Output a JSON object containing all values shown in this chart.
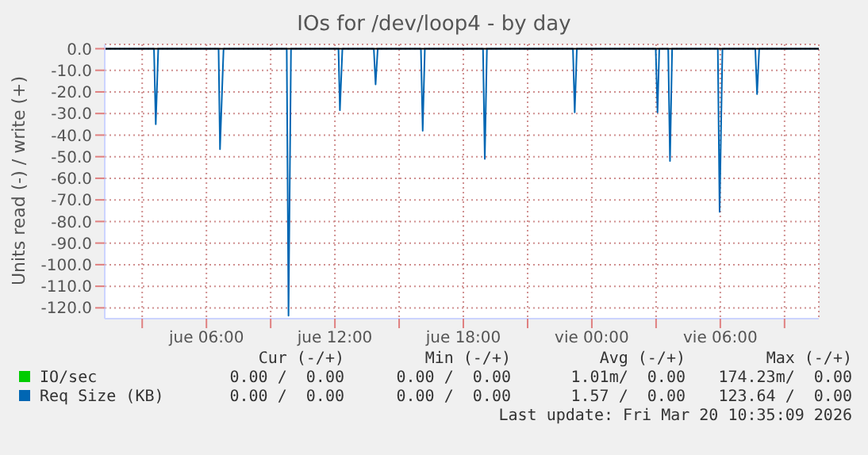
{
  "chart_data": {
    "type": "line",
    "title": "IOs for /dev/loop4 - by day",
    "ylabel": "Units read (-) / write (+)",
    "xlim": [
      "2026-03-19T01:15",
      "2026-03-20T10:36"
    ],
    "ylim": [
      -125,
      2
    ],
    "xticks": [
      {
        "value": "2026-03-19T03:00",
        "label": null
      },
      {
        "value": "2026-03-19T06:00",
        "label": "jue 06:00"
      },
      {
        "value": "2026-03-19T09:00",
        "label": null
      },
      {
        "value": "2026-03-19T12:00",
        "label": "jue 12:00"
      },
      {
        "value": "2026-03-19T15:00",
        "label": null
      },
      {
        "value": "2026-03-19T18:00",
        "label": "jue 18:00"
      },
      {
        "value": "2026-03-19T21:00",
        "label": null
      },
      {
        "value": "2026-03-20T00:00",
        "label": "vie 00:00"
      },
      {
        "value": "2026-03-20T03:00",
        "label": null
      },
      {
        "value": "2026-03-20T06:00",
        "label": "vie 06:00"
      },
      {
        "value": "2026-03-20T09:00",
        "label": null
      }
    ],
    "yticks": [
      {
        "value": 0,
        "label": "0.0"
      },
      {
        "value": -10,
        "label": "-10.0"
      },
      {
        "value": -20,
        "label": "-20.0"
      },
      {
        "value": -30,
        "label": "-30.0"
      },
      {
        "value": -40,
        "label": "-40.0"
      },
      {
        "value": -50,
        "label": "-50.0"
      },
      {
        "value": -60,
        "label": "-60.0"
      },
      {
        "value": -70,
        "label": "-70.0"
      },
      {
        "value": -80,
        "label": "-80.0"
      },
      {
        "value": -90,
        "label": "-90.0"
      },
      {
        "value": -100,
        "label": "-100.0"
      },
      {
        "value": -110,
        "label": "-110.0"
      },
      {
        "value": -120,
        "label": "-120.0"
      }
    ],
    "grid": true,
    "legend": "bottom",
    "marker": "none",
    "line_style": "solid",
    "series": [
      {
        "name": "IO/sec",
        "color": "#00cc00"
      },
      {
        "name": "Req Size (KB)",
        "color": "#0066b3",
        "x": [
          "2026-03-19T01:15",
          "2026-03-19T03:33",
          "2026-03-19T03:38",
          "2026-03-19T03:45",
          "2026-03-19T06:34",
          "2026-03-19T06:38",
          "2026-03-19T06:48",
          "2026-03-19T09:45",
          "2026-03-19T09:50",
          "2026-03-19T09:57",
          "2026-03-19T12:10",
          "2026-03-19T12:14",
          "2026-03-19T12:21",
          "2026-03-19T13:49",
          "2026-03-19T13:54",
          "2026-03-19T14:00",
          "2026-03-19T16:01",
          "2026-03-19T16:06",
          "2026-03-19T16:12",
          "2026-03-19T18:55",
          "2026-03-19T19:00",
          "2026-03-19T19:06",
          "2026-03-19T23:07",
          "2026-03-19T23:12",
          "2026-03-19T23:18",
          "2026-03-20T02:59",
          "2026-03-20T03:04",
          "2026-03-20T03:09",
          "2026-03-20T03:34",
          "2026-03-20T03:39",
          "2026-03-20T03:45",
          "2026-03-20T05:53",
          "2026-03-20T05:58",
          "2026-03-20T06:06",
          "2026-03-20T07:38",
          "2026-03-20T07:43",
          "2026-03-20T07:49",
          "2026-03-20T10:36"
        ],
        "values": [
          0,
          0,
          -35,
          0,
          0,
          -46.5,
          0,
          0,
          -123.6,
          0,
          0,
          -28.5,
          0,
          0,
          -16.5,
          0,
          0,
          -38,
          0,
          0,
          -51,
          0,
          0,
          -29.5,
          0,
          0,
          -29.5,
          0,
          0,
          -52,
          0,
          0,
          -75.5,
          0,
          0,
          -21,
          0,
          0
        ]
      }
    ],
    "ref_lines": [
      {
        "axis": "y",
        "value": 0,
        "color": "#000000"
      }
    ],
    "annotations": [
      "Cur (-/+)",
      "Min (-/+)",
      "Avg (-/+)",
      "Max (-/+)",
      "0.00 /  0.00",
      "0.00 /  0.00",
      "1.01m/  0.00",
      "174.23m/  0.00",
      "0.00 /  0.00",
      "0.00 /  0.00",
      "1.57 /  0.00",
      "123.64 /  0.00",
      "Last update: Fri Mar 20 10:35:09 2026"
    ]
  }
}
